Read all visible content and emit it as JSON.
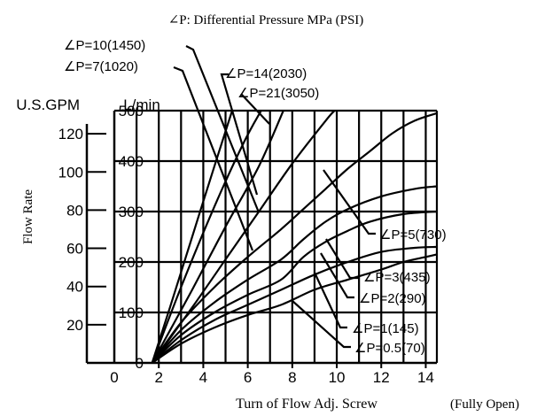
{
  "chart_data": {
    "type": "line",
    "title": "∠P: Differential Pressure MPa (PSI)",
    "xlabel": "Turn of Flow Adj. Screw",
    "xlabel_suffix": "(Fully Open)",
    "ylabel": "Flow Rate",
    "y_unit_left": "U.S.GPM",
    "y_unit_right": "L/min",
    "xlim": [
      0,
      14.5
    ],
    "ylim": [
      0,
      500
    ],
    "x_ticks": [
      "0",
      "2",
      "4",
      "6",
      "8",
      "10",
      "12",
      "14"
    ],
    "y_ticks_lmin": [
      "0",
      "100",
      "200",
      "300",
      "400",
      "500"
    ],
    "y_ticks_gpm": [
      "20",
      "40",
      "60",
      "80",
      "100",
      "120"
    ],
    "grid": true,
    "series": [
      {
        "name": "∠P=0.5(70)",
        "x": [
          1.7,
          3.0,
          4.5,
          6.0,
          7.5,
          9.0,
          10.5,
          12.0,
          13.0,
          14.0,
          14.5
        ],
        "y": [
          0,
          38,
          70,
          95,
          115,
          145,
          165,
          185,
          200,
          210,
          215
        ]
      },
      {
        "name": "∠P=1(145)",
        "x": [
          1.7,
          3.0,
          4.5,
          6.0,
          7.5,
          9.0,
          10.5,
          12.0,
          13.5,
          14.5
        ],
        "y": [
          0,
          45,
          85,
          115,
          145,
          175,
          200,
          220,
          228,
          230
        ]
      },
      {
        "name": "∠P=2(290)",
        "x": [
          1.7,
          3.0,
          4.5,
          6.0,
          7.5,
          8.5,
          9.5,
          10.5,
          11.5,
          13.0,
          14.5
        ],
        "y": [
          0,
          55,
          100,
          135,
          165,
          210,
          240,
          262,
          280,
          295,
          300
        ]
      },
      {
        "name": "∠P=3(435)",
        "x": [
          1.7,
          3.0,
          4.5,
          6.0,
          7.5,
          8.5,
          9.5,
          10.5,
          12.0,
          13.5,
          14.5
        ],
        "y": [
          0,
          65,
          120,
          165,
          205,
          245,
          280,
          305,
          330,
          345,
          350
        ]
      },
      {
        "name": "∠P=5(730)",
        "x": [
          1.7,
          3.0,
          4.5,
          6.0,
          7.5,
          8.5,
          9.5,
          10.5,
          11.5,
          12.5,
          13.5,
          14.5
        ],
        "y": [
          0,
          80,
          150,
          210,
          265,
          305,
          345,
          385,
          420,
          455,
          480,
          495
        ]
      },
      {
        "name": "∠P=7(1020)",
        "x": [
          1.7,
          3.5,
          5.0,
          6.5,
          8.0,
          9.5,
          9.9
        ],
        "y": [
          0,
          110,
          205,
          300,
          395,
          480,
          500
        ]
      },
      {
        "name": "∠P=10(1450)",
        "x": [
          1.7,
          3.5,
          5.0,
          6.5,
          7.6
        ],
        "y": [
          0,
          145,
          270,
          390,
          500
        ]
      },
      {
        "name": "∠P=14(2030)",
        "x": [
          1.7,
          3.0,
          4.5,
          5.8,
          6.6
        ],
        "y": [
          0,
          150,
          310,
          435,
          500
        ]
      },
      {
        "name": "∠P=21(3050)",
        "x": [
          1.7,
          2.5,
          3.5,
          4.5,
          5.3
        ],
        "y": [
          0,
          110,
          250,
          390,
          500
        ]
      }
    ]
  }
}
